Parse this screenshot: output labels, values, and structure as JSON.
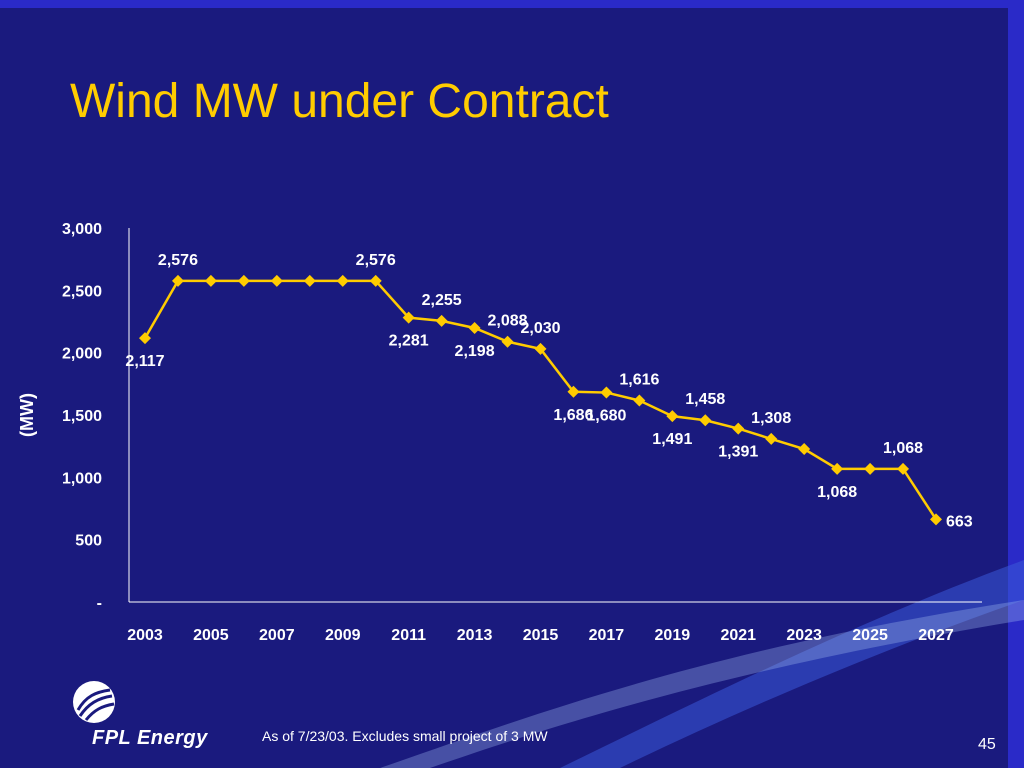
{
  "slide": {
    "title": "Wind MW under Contract",
    "footnote": "As of 7/23/03. Excludes small project of 3 MW",
    "page_number": "45",
    "logo_text": "FPL Energy",
    "colors": {
      "background": "#1a1a7e",
      "title": "#ffcc00",
      "series": "#ffcc00",
      "text": "#ffffff"
    }
  },
  "chart_data": {
    "type": "line",
    "title": "Wind MW under Contract",
    "xlabel": "",
    "ylabel": "(MW)",
    "ylim": [
      0,
      3000
    ],
    "y_ticks": [
      "-",
      "500",
      "1,000",
      "1,500",
      "2,000",
      "2,500",
      "3,000"
    ],
    "x": [
      2003,
      2004,
      2005,
      2006,
      2007,
      2008,
      2009,
      2010,
      2011,
      2012,
      2013,
      2014,
      2015,
      2016,
      2017,
      2018,
      2019,
      2020,
      2021,
      2022,
      2023,
      2024,
      2025,
      2026,
      2027
    ],
    "x_tick_labels": [
      "2003",
      "2005",
      "2007",
      "2009",
      "2011",
      "2013",
      "2015",
      "2017",
      "2019",
      "2021",
      "2023",
      "2025",
      "2027"
    ],
    "values": [
      2117,
      2576,
      2576,
      2576,
      2576,
      2576,
      2576,
      2576,
      2281,
      2255,
      2198,
      2088,
      2030,
      1686,
      1680,
      1616,
      1491,
      1458,
      1391,
      1308,
      1227,
      1068,
      1068,
      1068,
      663
    ],
    "data_labels": [
      {
        "index": 0,
        "text": "2,117",
        "position": "below"
      },
      {
        "index": 1,
        "text": "2,576",
        "position": "above"
      },
      {
        "index": 7,
        "text": "2,576",
        "position": "above"
      },
      {
        "index": 8,
        "text": "2,281",
        "position": "below"
      },
      {
        "index": 9,
        "text": "2,255",
        "position": "above"
      },
      {
        "index": 10,
        "text": "2,198",
        "position": "below"
      },
      {
        "index": 11,
        "text": "2,088",
        "position": "above"
      },
      {
        "index": 12,
        "text": "2,030",
        "position": "above"
      },
      {
        "index": 13,
        "text": "1,686",
        "position": "below"
      },
      {
        "index": 14,
        "text": "1,680",
        "position": "below"
      },
      {
        "index": 15,
        "text": "1,616",
        "position": "above"
      },
      {
        "index": 16,
        "text": "1,491",
        "position": "below"
      },
      {
        "index": 17,
        "text": "1,458",
        "position": "above"
      },
      {
        "index": 18,
        "text": "1,391",
        "position": "below"
      },
      {
        "index": 19,
        "text": "1,308",
        "position": "above"
      },
      {
        "index": 21,
        "text": "1,068",
        "position": "below"
      },
      {
        "index": 23,
        "text": "1,068",
        "position": "above"
      },
      {
        "index": 24,
        "text": "663",
        "position": "right"
      }
    ],
    "grid": false,
    "marker": "diamond"
  }
}
